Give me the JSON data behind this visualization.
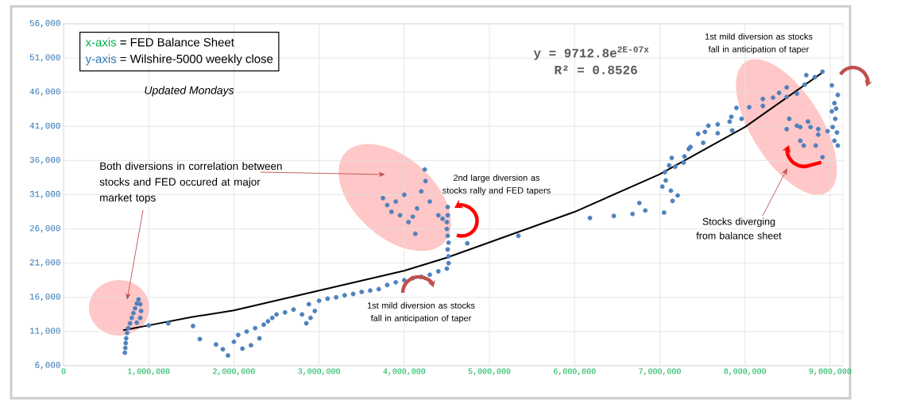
{
  "chart_data": {
    "type": "scatter",
    "xlim": [
      0,
      9150000
    ],
    "ylim": [
      6000,
      56000
    ],
    "xticks": [
      0,
      {
        "value": 1000000,
        "label": "1,000,000"
      },
      {
        "value": 2000000,
        "label": "2,000,000"
      },
      {
        "value": 3000000,
        "label": "3,000,000"
      },
      {
        "value": 4000000,
        "label": "4,000,000"
      },
      {
        "value": 5000000,
        "label": "5,000,000"
      },
      {
        "value": 6000000,
        "label": "6,000,000"
      },
      {
        "value": 7000000,
        "label": "7,000,000"
      },
      {
        "value": 8000000,
        "label": "8,000,000"
      },
      {
        "value": 9000000,
        "label": "9,000,000"
      }
    ],
    "yticks": [
      {
        "value": 6000,
        "label": "6,000"
      },
      {
        "value": 11000,
        "label": "11,000"
      },
      {
        "value": 16000,
        "label": "16,000"
      },
      {
        "value": 21000,
        "label": "21,000"
      },
      {
        "value": 26000,
        "label": "26,000"
      },
      {
        "value": 31000,
        "label": "31,000"
      },
      {
        "value": 36000,
        "label": "36,000"
      },
      {
        "value": 41000,
        "label": "41,000"
      },
      {
        "value": 46000,
        "label": "46,000"
      },
      {
        "value": 51000,
        "label": "51,000"
      },
      {
        "value": 56000,
        "label": "56,000"
      }
    ],
    "grid": true,
    "series": [
      {
        "marker": "circle",
        "color": "#4f81bd",
        "x": [
          720000,
          725000,
          730000,
          735000,
          745000,
          760000,
          780000,
          800000,
          820000,
          840000,
          860000,
          880000,
          900000,
          910000,
          900000,
          860000,
          1000000,
          1230000,
          1520000,
          1600000,
          1790000,
          1870000,
          1930000,
          2000000,
          2050000,
          2100000,
          2150000,
          2200000,
          2250000,
          2300000,
          2350000,
          2400000,
          2450000,
          2500000,
          2600000,
          2700000,
          2800000,
          2850000,
          2880000,
          2900000,
          2950000,
          3000000,
          3100000,
          3200000,
          3300000,
          3400000,
          3500000,
          3600000,
          3700000,
          3800000,
          3900000,
          4000000,
          4100000,
          4200000,
          4300000,
          4400000,
          4500000,
          4520000,
          4520000,
          4510000,
          4520000,
          4510000,
          4500000,
          4500000,
          4510000,
          4510000,
          3750000,
          3800000,
          3850000,
          3900000,
          4000000,
          4050000,
          4130000,
          4200000,
          4150000,
          4300000,
          4400000,
          4450000,
          4250000,
          4240000,
          3950000,
          4100000,
          4740000,
          5340000,
          6180000,
          6460000,
          6680000,
          6760000,
          6830000,
          7050000,
          7150000,
          7210000,
          7130000,
          7030000,
          7070000,
          7060000,
          7110000,
          7180000,
          7140000,
          7280000,
          7290000,
          7340000,
          7360000,
          7450000,
          7530000,
          7510000,
          7570000,
          7680000,
          7680000,
          7820000,
          7850000,
          7840000,
          7900000,
          7960000,
          8050000,
          8210000,
          8210000,
          8330000,
          8400000,
          8490000,
          8490000,
          8610000,
          8700000,
          8520000,
          8490000,
          8650000,
          8740000,
          8650000,
          8690000,
          8830000,
          8910000,
          8860000,
          8770000,
          8610000,
          8860000,
          8720000,
          8820000,
          8910000,
          9020000,
          9090000,
          9050000,
          9070000,
          9020000,
          9060000,
          9030000,
          9080000,
          9050000,
          9090000,
          8970000
        ],
        "values": [
          7900,
          8600,
          9300,
          10000,
          10800,
          11500,
          12200,
          13000,
          13700,
          14400,
          15100,
          15700,
          15000,
          14000,
          13000,
          12300,
          11900,
          12200,
          11800,
          9900,
          9100,
          8400,
          7500,
          9500,
          10500,
          8500,
          11000,
          9000,
          11500,
          10000,
          12000,
          12500,
          13000,
          13500,
          13800,
          14200,
          13500,
          12200,
          15000,
          13000,
          14000,
          15500,
          15800,
          16000,
          16300,
          16500,
          16800,
          17000,
          17200,
          17800,
          18200,
          18500,
          18800,
          19000,
          19300,
          19800,
          20200,
          21000,
          22000,
          23000,
          24000,
          25000,
          26000,
          27000,
          28000,
          29200,
          30500,
          29500,
          28500,
          30000,
          31000,
          27000,
          25300,
          31500,
          29000,
          30000,
          28000,
          27500,
          33000,
          34700,
          28000,
          27800,
          23900,
          25000,
          27600,
          27900,
          28200,
          29800,
          28700,
          28400,
          30100,
          30900,
          31600,
          32200,
          33100,
          34300,
          35300,
          35100,
          36400,
          35700,
          36600,
          37700,
          38000,
          39900,
          40200,
          38600,
          41100,
          41300,
          40000,
          41700,
          40400,
          42400,
          43700,
          42100,
          43800,
          45000,
          44000,
          45200,
          45900,
          46700,
          45300,
          45800,
          47100,
          42100,
          40600,
          40900,
          41700,
          38900,
          38200,
          38200,
          36500,
          40600,
          40900,
          41100,
          39800,
          48500,
          48200,
          49000,
          47000,
          45600,
          44400,
          43600,
          43200,
          42100,
          40900,
          40100,
          38900,
          38200,
          40300
        ]
      },
      {
        "type": "line",
        "color": "#000000",
        "x": [
          700000,
          1000000,
          1500000,
          2000000,
          3000000,
          4000000,
          4500000,
          5350000,
          6000000,
          7000000,
          8000000,
          8900000
        ],
        "values": [
          11200,
          11900,
          13100,
          14100,
          17000,
          19900,
          21800,
          25600,
          28500,
          34000,
          40900,
          48800
        ]
      }
    ],
    "annotations": [
      "x-axis",
      "= FED Balance Sheet",
      "y-axis",
      "= Wilshire-5000 weekly close",
      "Updated Mondays",
      "y = 9712.8e$^{2E-07x}$",
      "R² = 0.8526",
      "Both diversions in correlation between  stocks and FED occured at major market tops",
      "2nd large diversion as stocks rally and FED tapers",
      "1st mild diversion as stocks fall in anticipation of taper",
      "1st mild diversion as stocks fall in anticipation of taper",
      "Stocks diverging from balance sheet"
    ]
  }
}
